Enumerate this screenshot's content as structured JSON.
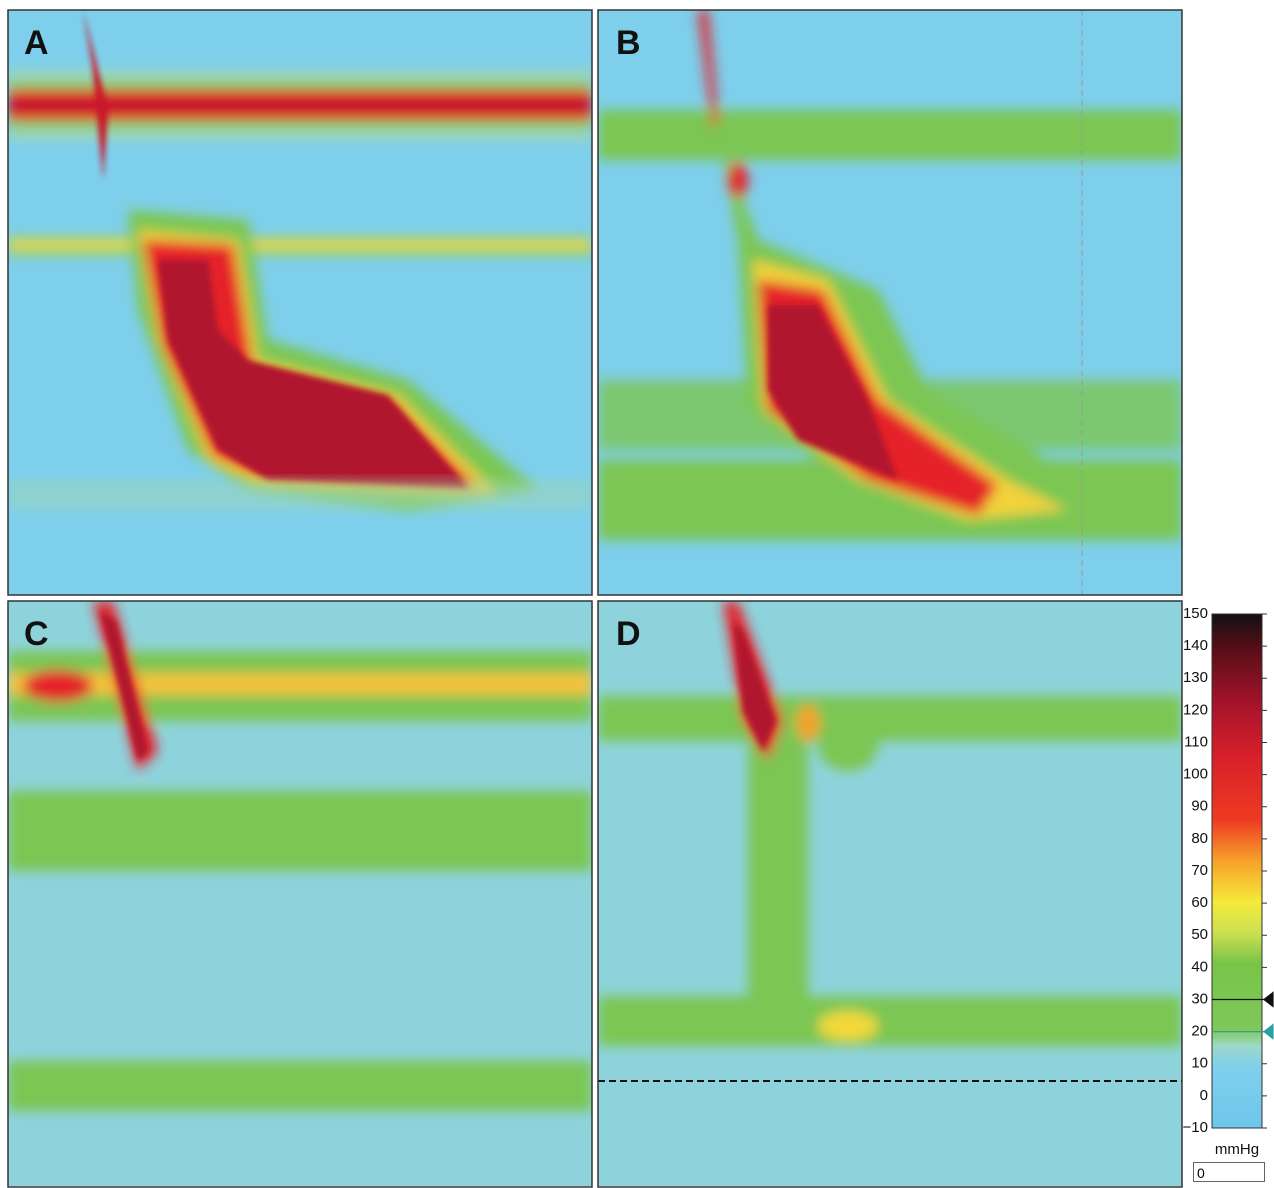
{
  "panels": [
    {
      "label": "A"
    },
    {
      "label": "B"
    },
    {
      "label": "C"
    },
    {
      "label": "D"
    }
  ],
  "colorbar": {
    "ticks": [
      150,
      140,
      130,
      120,
      110,
      100,
      90,
      80,
      70,
      60,
      50,
      40,
      30,
      20,
      10,
      0,
      {
        "value": -10,
        "label": "−10"
      }
    ],
    "markers": [
      30,
      20
    ],
    "unit": "mmHg"
  },
  "input": {
    "value": "0"
  }
}
